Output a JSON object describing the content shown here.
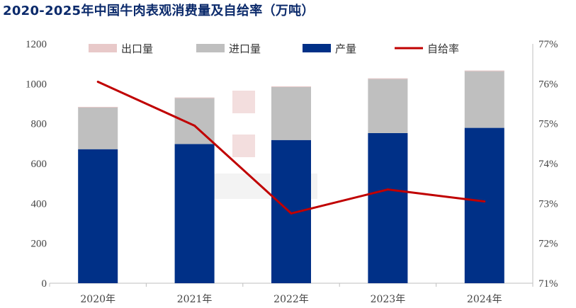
{
  "title": "2020-2025年中国牛肉表观消费量及自给率（万吨）",
  "chart_data": {
    "type": "bar",
    "stacked": true,
    "categories": [
      "2020年",
      "2021年",
      "2022年",
      "2023年",
      "2024年"
    ],
    "series": [
      {
        "name": "产量",
        "kind": "bar",
        "axis": "left",
        "color": "#003087",
        "values": [
          672,
          698,
          718,
          753,
          779
        ]
      },
      {
        "name": "进口量",
        "kind": "bar",
        "axis": "left",
        "color": "#bfbfbf",
        "values": [
          212,
          233,
          269,
          274,
          287
        ]
      },
      {
        "name": "出口量",
        "kind": "bar",
        "axis": "left",
        "color": "#e8c9c9",
        "values": [
          0.3,
          0.1,
          0.2,
          0.1,
          0.1
        ]
      },
      {
        "name": "自给率",
        "kind": "line",
        "axis": "right",
        "color": "#c00000",
        "values": [
          76.05,
          74.95,
          72.75,
          73.35,
          73.05
        ]
      }
    ],
    "legend_order": [
      "出口量",
      "进口量",
      "产量",
      "自给率"
    ],
    "legend_position": "top",
    "y_left": {
      "min": 0,
      "max": 1200,
      "ticks": [
        0,
        200,
        400,
        600,
        800,
        1000,
        1200
      ]
    },
    "y_right": {
      "min": 71,
      "max": 77,
      "ticks": [
        "71%",
        "72%",
        "73%",
        "74%",
        "75%",
        "76%",
        "77%"
      ]
    },
    "grid": false
  }
}
